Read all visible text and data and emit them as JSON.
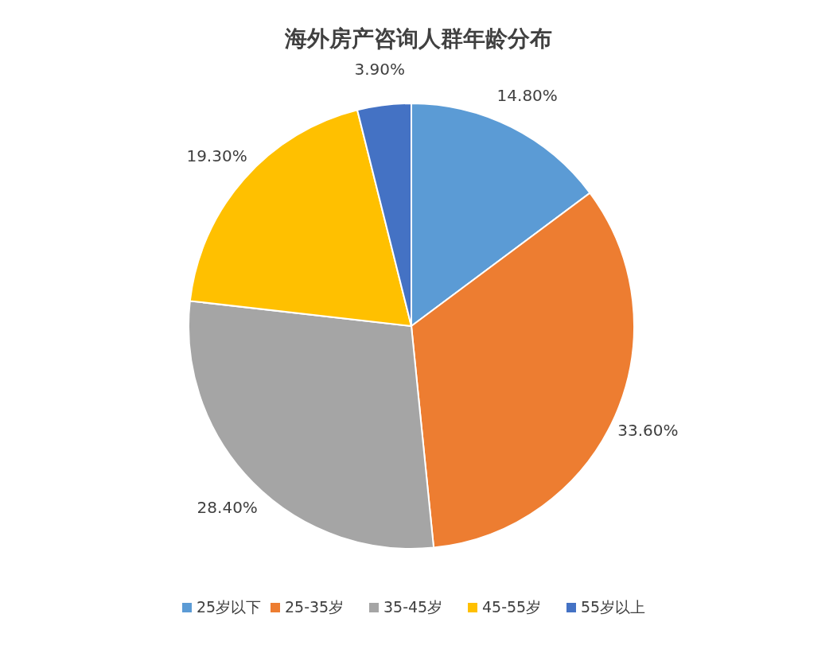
{
  "chart_data": {
    "type": "pie",
    "title": "海外房产咨询人群年龄分布",
    "categories": [
      "25岁以下",
      "25-35岁",
      "35-45岁",
      "45-55岁",
      "55岁以上"
    ],
    "values": [
      14.8,
      33.6,
      28.4,
      19.3,
      3.9
    ],
    "value_labels": [
      "14.80%",
      "33.60%",
      "28.40%",
      "19.30%",
      "3.90%"
    ],
    "colors": [
      "#5b9bd5",
      "#ed7d31",
      "#a5a5a5",
      "#ffc000",
      "#4472c4"
    ],
    "legend": "bottom"
  }
}
